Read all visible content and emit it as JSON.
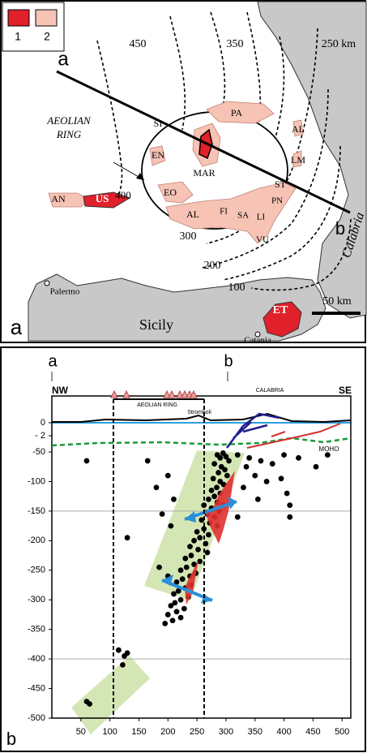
{
  "map": {
    "legend": [
      "1",
      "2"
    ],
    "labels": [
      "a",
      "450",
      "350",
      "250 km",
      "AEOLIAN",
      "RING",
      "SI",
      "PA",
      "AL",
      "EN",
      "MAR",
      "LM",
      "AN",
      "US",
      "400",
      "EO",
      "ST",
      "PN",
      "FI",
      "SA",
      "AL",
      "LI",
      "VU",
      "b",
      "300",
      "200",
      "Calabria",
      "Palermo",
      "100",
      "Sicily",
      "ET",
      "50 km",
      "Catania"
    ],
    "panel": "a"
  },
  "section": {
    "markers": [
      "a",
      "b"
    ],
    "ends": [
      "NW",
      "SE"
    ],
    "aeolian": "AEOLIAN  RING",
    "stromboli": "Stromboli",
    "calabria": "CALABRIA",
    "moho": "MOHO",
    "panel": "b"
  },
  "chart_data": {
    "type": "scatter",
    "color": "#000000",
    "x": [
      285,
      290,
      295,
      300,
      305,
      280,
      292,
      298,
      287,
      302,
      278,
      290,
      296,
      284,
      275,
      290,
      280,
      270,
      285,
      295,
      262,
      275,
      288,
      268,
      280,
      258,
      272,
      285,
      262,
      250,
      270,
      255,
      245,
      265,
      238,
      252,
      268,
      240,
      230,
      255,
      245,
      232,
      222,
      248,
      238,
      225,
      215,
      240,
      230,
      218,
      210,
      235,
      222,
      212,
      205,
      228,
      215,
      200,
      222,
      208,
      195,
      60,
      130,
      165,
      180,
      200,
      190,
      210,
      205,
      200,
      185,
      320,
      340,
      360,
      335,
      380,
      400,
      350,
      370,
      330,
      395,
      405,
      410,
      410,
      355,
      310,
      320,
      475,
      455,
      425,
      115,
      125,
      122,
      130,
      60,
      65
    ],
    "values": [
      -55,
      -60,
      -52,
      -58,
      -65,
      -70,
      -75,
      -80,
      -85,
      -90,
      -95,
      -100,
      -105,
      -110,
      -115,
      -120,
      -125,
      -130,
      -135,
      -140,
      -140,
      -145,
      -150,
      -155,
      -160,
      -165,
      -170,
      -175,
      -180,
      -185,
      -190,
      -195,
      -200,
      -205,
      -210,
      -215,
      -220,
      -225,
      -230,
      -235,
      -240,
      -245,
      -250,
      -255,
      -260,
      -265,
      -270,
      -275,
      -280,
      -285,
      -290,
      -295,
      -300,
      -305,
      -310,
      -315,
      -320,
      -325,
      -330,
      -335,
      -340,
      -65,
      -195,
      -65,
      -110,
      -90,
      -155,
      -130,
      -175,
      -260,
      -245,
      -55,
      -60,
      -65,
      -75,
      -70,
      -55,
      -90,
      -100,
      -110,
      -95,
      -120,
      -140,
      -160,
      -130,
      -135,
      -160,
      -55,
      -75,
      -60,
      -385,
      -395,
      -410,
      -390,
      -472,
      -476
    ],
    "xlim": [
      0,
      515
    ],
    "ylim": [
      -500,
      0
    ],
    "xticks": [
      50,
      100,
      150,
      200,
      250,
      300,
      350,
      400,
      450,
      500
    ],
    "yticks": [
      0,
      {
        "value": -2,
        "label": "- 2"
      },
      -50,
      -100,
      -150,
      -200,
      -250,
      -300,
      -350,
      -400,
      -450,
      -500
    ],
    "hlines": [
      -150,
      -400
    ]
  }
}
